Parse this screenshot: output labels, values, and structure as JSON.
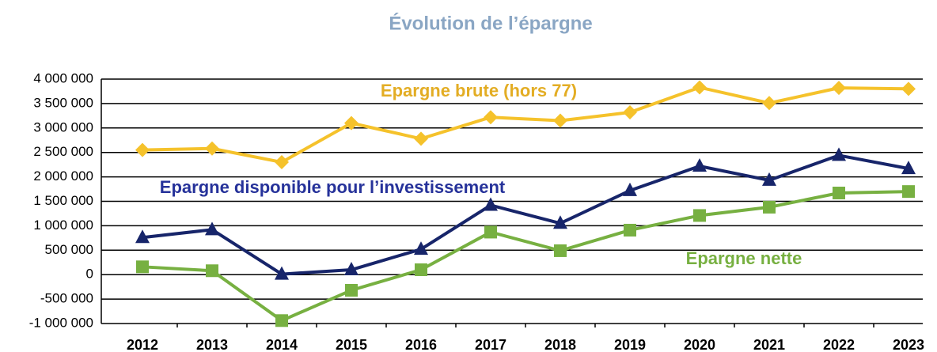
{
  "chart_data": {
    "type": "line",
    "title": "Évolution de l’épargne",
    "categories": [
      "2012",
      "2013",
      "2014",
      "2015",
      "2016",
      "2017",
      "2018",
      "2019",
      "2020",
      "2021",
      "2022",
      "2023"
    ],
    "series": [
      {
        "name": "Epargne brute (hors 77)",
        "color": "#f5c22b",
        "label_color": "#e3ad24",
        "marker": "diamond",
        "values": [
          2550000,
          2580000,
          2300000,
          3100000,
          2780000,
          3220000,
          3150000,
          3320000,
          3830000,
          3510000,
          3820000,
          3800000
        ]
      },
      {
        "name": "Epargne disponible pour l’investissement",
        "color": "#17256a",
        "label_color": "#26329a",
        "marker": "triangle",
        "values": [
          760000,
          920000,
          10000,
          100000,
          520000,
          1420000,
          1050000,
          1720000,
          2220000,
          1930000,
          2440000,
          2170000
        ]
      },
      {
        "name": "Epargne nette",
        "color": "#77b041",
        "label_color": "#77b041",
        "marker": "square",
        "values": [
          160000,
          80000,
          -940000,
          -320000,
          100000,
          870000,
          490000,
          910000,
          1210000,
          1380000,
          1670000,
          1700000
        ]
      }
    ],
    "ylim": [
      -1000000,
      4000000
    ],
    "yticks": [
      {
        "value": -1000000,
        "label": "-1 000 000"
      },
      {
        "value": -500000,
        "label": "-500 000"
      },
      0,
      {
        "value": 500000,
        "label": "500 000"
      },
      {
        "value": 1000000,
        "label": "1 000 000"
      },
      {
        "value": 1500000,
        "label": "1 500 000"
      },
      {
        "value": 2000000,
        "label": "2 000 000"
      },
      {
        "value": 2500000,
        "label": "2 500 000"
      },
      {
        "value": 3000000,
        "label": "3 000 000"
      },
      {
        "value": 3500000,
        "label": "3 500 000"
      },
      {
        "value": 4000000,
        "label": "4 000 000"
      }
    ],
    "grid": true
  }
}
